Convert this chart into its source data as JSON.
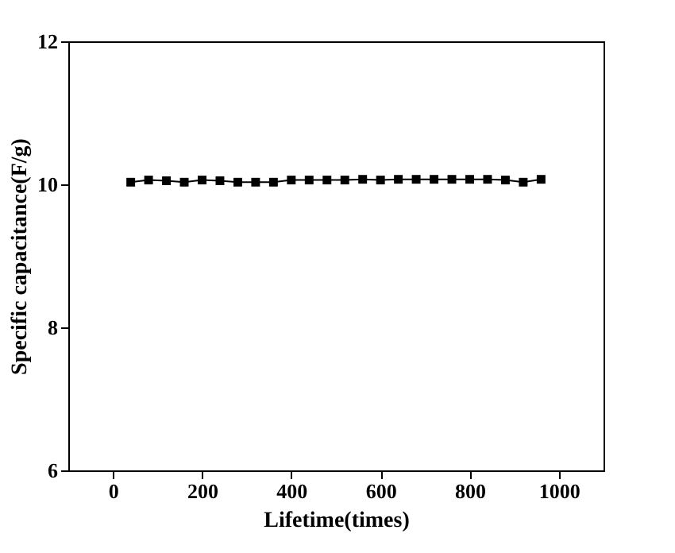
{
  "chart_data": {
    "type": "line",
    "xlabel": "Lifetime(times)",
    "ylabel": "Specific capacitance(F/g)",
    "x": [
      40,
      80,
      120,
      160,
      200,
      240,
      280,
      320,
      360,
      400,
      440,
      480,
      520,
      560,
      600,
      640,
      680,
      720,
      760,
      800,
      840,
      880,
      920,
      960
    ],
    "series": [
      {
        "color": "#000000",
        "values": [
          10.03,
          10.06,
          10.05,
          10.03,
          10.06,
          10.05,
          10.03,
          10.03,
          10.03,
          10.06,
          10.06,
          10.06,
          10.06,
          10.07,
          10.06,
          10.07,
          10.07,
          10.07,
          10.07,
          10.07,
          10.07,
          10.06,
          10.03,
          10.07
        ]
      }
    ],
    "xlim": [
      -100,
      1100
    ],
    "xticks": [
      0,
      200,
      400,
      600,
      800,
      1000
    ],
    "ylim": [
      6,
      12
    ],
    "yticks": [
      6,
      8,
      10,
      12
    ],
    "grid": false,
    "legend": false,
    "marker": "square",
    "line_style": "solid"
  }
}
